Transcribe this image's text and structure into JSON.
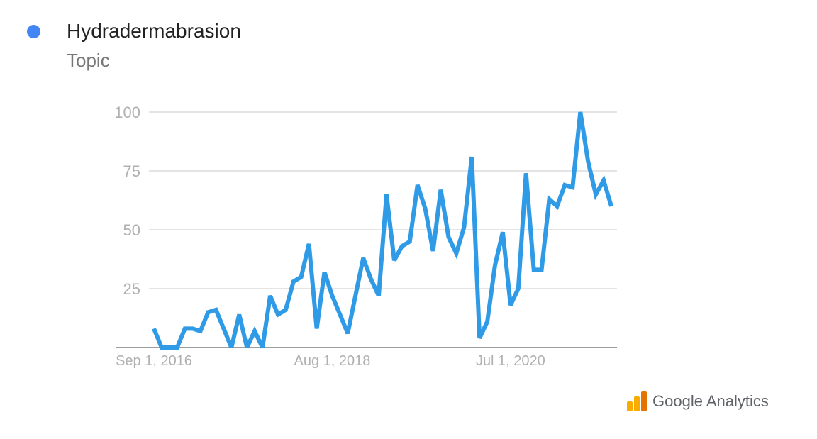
{
  "legend": {
    "name": "Hydradermabrasion",
    "type": "Topic"
  },
  "brand": {
    "text": "Google Analytics",
    "icon": "google-analytics-logo-icon"
  },
  "colors": {
    "series": "#2f9ae6",
    "dot": "#4285f4",
    "grid": "#dcdcdc",
    "axis": "#9e9e9e",
    "tick_text": "#b0b0b0"
  },
  "chart_data": {
    "type": "line",
    "title": "",
    "xlabel": "",
    "ylabel": "",
    "ylim": [
      0,
      100
    ],
    "yticks": [
      "25",
      "50",
      "75",
      "100"
    ],
    "x_tick_labels": [
      {
        "label": "Sep 1, 2016",
        "index": 0
      },
      {
        "label": "Aug 1, 2018",
        "index": 23
      },
      {
        "label": "Jul 1, 2020",
        "index": 46
      }
    ],
    "grid": true,
    "series": [
      {
        "name": "Hydradermabrasion",
        "values": [
          8,
          0,
          0,
          0,
          8,
          8,
          7,
          15,
          16,
          8,
          0,
          14,
          0,
          7,
          0,
          22,
          14,
          16,
          28,
          30,
          44,
          8,
          32,
          22,
          14,
          6,
          22,
          38,
          29,
          22,
          65,
          37,
          43,
          45,
          69,
          59,
          41,
          67,
          47,
          40,
          51,
          81,
          4,
          11,
          35,
          49,
          18,
          25,
          74,
          33,
          33,
          63,
          60,
          69,
          68,
          100,
          79,
          65,
          71,
          60
        ]
      }
    ]
  }
}
